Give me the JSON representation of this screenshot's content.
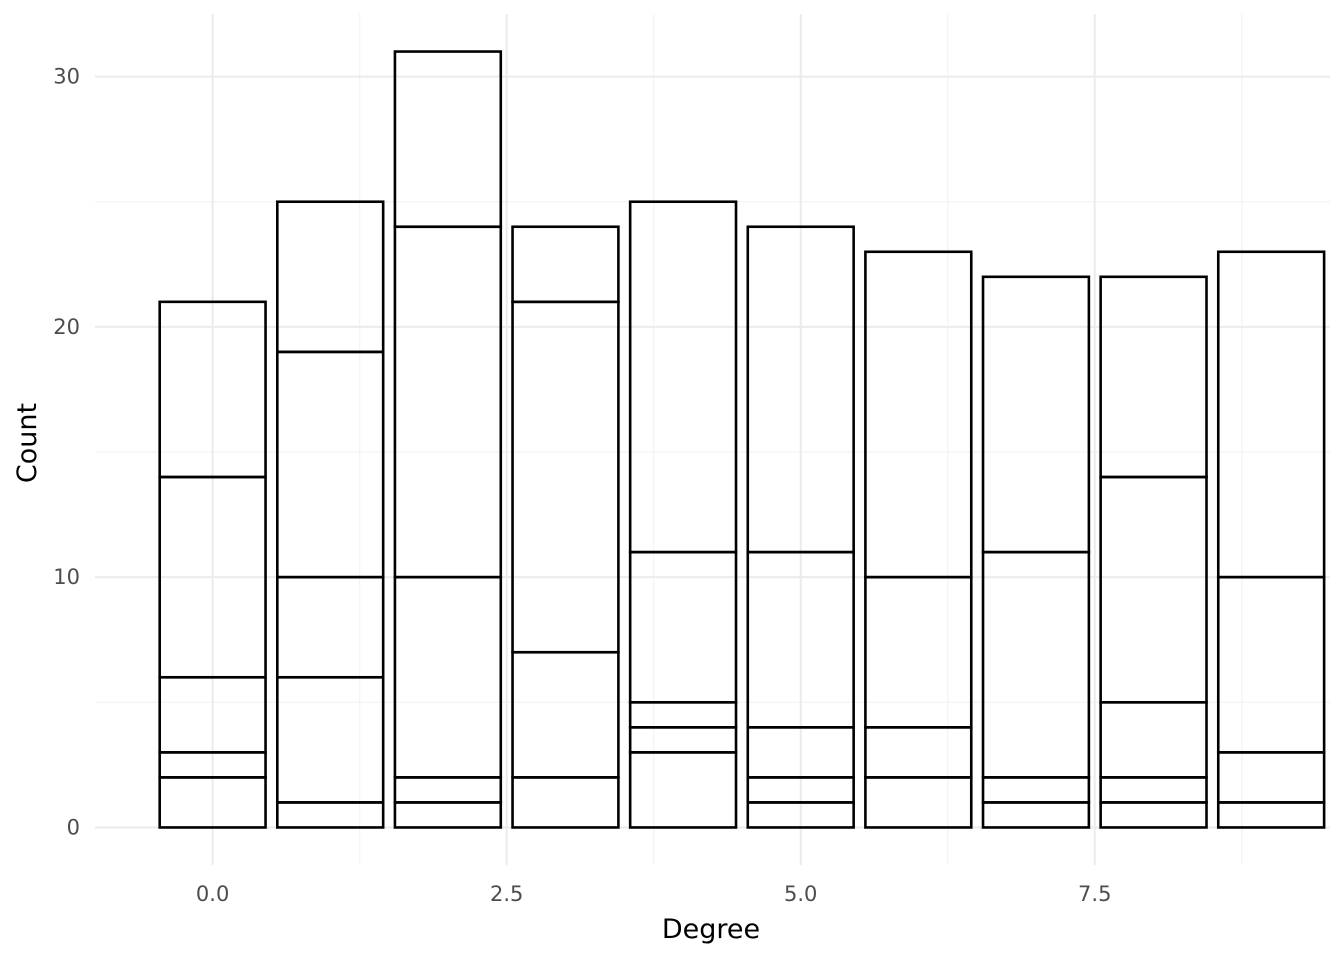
{
  "chart_data": {
    "type": "bar",
    "stacked": true,
    "xlabel": "Degree",
    "ylabel": "Count",
    "xlim": [
      -1.0,
      9.5
    ],
    "ylim": [
      -1.5,
      32.5
    ],
    "x_ticks": [
      {
        "value": 0.0,
        "label": "0.0"
      },
      {
        "value": 2.5,
        "label": "2.5"
      },
      {
        "value": 5.0,
        "label": "5.0"
      },
      {
        "value": 7.5,
        "label": "7.5"
      }
    ],
    "x_minor_ticks": [
      1.25,
      3.75,
      6.25,
      8.75
    ],
    "y_ticks": [
      {
        "value": 0,
        "label": "0"
      },
      {
        "value": 10,
        "label": "10"
      },
      {
        "value": 20,
        "label": "20"
      },
      {
        "value": 30,
        "label": "30"
      }
    ],
    "y_minor_ticks": [
      5,
      15,
      25
    ],
    "grid": true,
    "bar_width": 0.9,
    "fill_color": "#ffffff",
    "outline_color": "#000000",
    "bars": [
      {
        "x": 0,
        "boundaries": [
          2,
          3,
          6,
          14,
          21
        ]
      },
      {
        "x": 1,
        "boundaries": [
          1,
          6,
          10,
          19,
          25
        ]
      },
      {
        "x": 2,
        "boundaries": [
          1,
          2,
          10,
          24,
          31
        ]
      },
      {
        "x": 3,
        "boundaries": [
          2,
          7,
          21,
          24
        ]
      },
      {
        "x": 4,
        "boundaries": [
          3,
          4,
          5,
          11,
          25
        ]
      },
      {
        "x": 5,
        "boundaries": [
          1,
          2,
          4,
          11,
          24
        ]
      },
      {
        "x": 6,
        "boundaries": [
          2,
          4,
          10,
          23
        ]
      },
      {
        "x": 7,
        "boundaries": [
          1,
          2,
          11,
          22
        ]
      },
      {
        "x": 8,
        "boundaries": [
          1,
          2,
          5,
          14,
          22
        ]
      },
      {
        "x": 9,
        "boundaries": [
          1,
          3,
          10,
          23
        ]
      }
    ]
  }
}
